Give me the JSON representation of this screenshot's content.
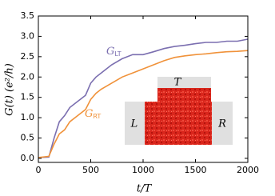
{
  "chart_data": {
    "type": "line",
    "x": [
      0,
      100,
      150,
      200,
      250,
      300,
      400,
      450,
      500,
      550,
      600,
      700,
      800,
      900,
      1000,
      1100,
      1200,
      1300,
      1400,
      1500,
      1600,
      1700,
      1800,
      1900,
      2000
    ],
    "series": [
      {
        "name": "G",
        "subscript": "LT",
        "color": "#7b6fb0",
        "values": [
          0.02,
          0.03,
          0.5,
          0.9,
          1.05,
          1.25,
          1.45,
          1.55,
          1.85,
          2.0,
          2.1,
          2.3,
          2.45,
          2.55,
          2.55,
          2.62,
          2.7,
          2.75,
          2.78,
          2.82,
          2.85,
          2.85,
          2.88,
          2.88,
          2.93
        ]
      },
      {
        "name": "G",
        "subscript": "RT",
        "color": "#f0923a",
        "values": [
          0.02,
          0.05,
          0.35,
          0.6,
          0.7,
          0.9,
          1.1,
          1.2,
          1.45,
          1.6,
          1.7,
          1.85,
          2.0,
          2.1,
          2.2,
          2.3,
          2.4,
          2.48,
          2.52,
          2.55,
          2.57,
          2.6,
          2.62,
          2.63,
          2.65
        ]
      }
    ],
    "x_label": "t/T",
    "y_label": "G(t) (e²/h)",
    "xlim": [
      0,
      2000
    ],
    "xticks": [
      0,
      500,
      1000,
      1500,
      2000
    ],
    "ylim": [
      -0.1,
      3.5
    ],
    "yticks": [
      {
        "value": 0,
        "label": "0.0"
      },
      {
        "value": 0.5,
        "label": "0.5"
      },
      {
        "value": 1,
        "label": "1.0"
      },
      {
        "value": 1.5,
        "label": "1.5"
      },
      {
        "value": 2,
        "label": "2.0"
      },
      {
        "value": 2.5,
        "label": "2.5"
      },
      {
        "value": 3,
        "label": "3.0"
      },
      {
        "value": 3.5,
        "label": "3.5"
      }
    ],
    "grid": false,
    "inset_labels": {
      "left": "L",
      "right": "R",
      "top": "T"
    }
  }
}
